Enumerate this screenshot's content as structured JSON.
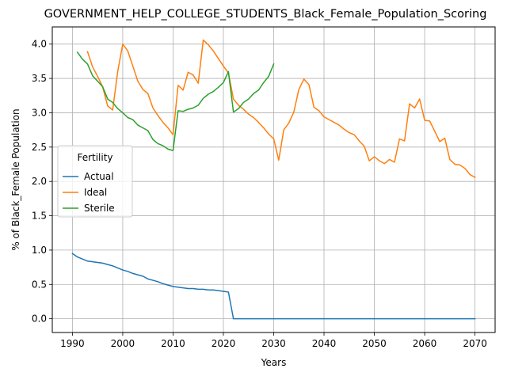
{
  "chart_data": {
    "type": "line",
    "title": "GOVERNMENT_HELP_COLLEGE_STUDENTS_Black_Female_Population_Scoring",
    "xlabel": "Years",
    "ylabel": "% of Black_Female Population",
    "xlim": [
      1986,
      2074
    ],
    "ylim": [
      -0.2,
      4.25
    ],
    "xticks": [
      1990,
      2000,
      2010,
      2020,
      2030,
      2040,
      2050,
      2060,
      2070
    ],
    "yticks": [
      0.0,
      0.5,
      1.0,
      1.5,
      2.0,
      2.5,
      3.0,
      3.5,
      4.0
    ],
    "ytick_labels": [
      "0.0",
      "0.5",
      "1.0",
      "1.5",
      "2.0",
      "2.5",
      "3.0",
      "3.5",
      "4.0"
    ],
    "grid": true,
    "legend": {
      "title": "Fertility",
      "placement": "center-left"
    },
    "series": [
      {
        "name": "Actual",
        "color": "#1f77b4",
        "x": [
          1990,
          1991,
          1992,
          1993,
          1994,
          1995,
          1996,
          1997,
          1998,
          1999,
          2000,
          2001,
          2002,
          2003,
          2004,
          2005,
          2006,
          2007,
          2008,
          2009,
          2010,
          2011,
          2012,
          2013,
          2014,
          2015,
          2016,
          2017,
          2018,
          2019,
          2020,
          2021,
          2022,
          2023,
          2025,
          2030,
          2040,
          2050,
          2060,
          2070
        ],
        "y": [
          0.95,
          0.9,
          0.87,
          0.84,
          0.83,
          0.82,
          0.81,
          0.79,
          0.77,
          0.74,
          0.71,
          0.69,
          0.66,
          0.64,
          0.62,
          0.58,
          0.56,
          0.54,
          0.51,
          0.49,
          0.47,
          0.46,
          0.45,
          0.44,
          0.44,
          0.43,
          0.43,
          0.42,
          0.42,
          0.41,
          0.4,
          0.39,
          0.0,
          0.0,
          0.0,
          0.0,
          0.0,
          0.0,
          0.0,
          0.0
        ]
      },
      {
        "name": "Ideal",
        "color": "#ff7f0e",
        "x": [
          1993,
          1994,
          1995,
          1996,
          1997,
          1998,
          1999,
          2000,
          2001,
          2002,
          2003,
          2004,
          2005,
          2006,
          2007,
          2008,
          2009,
          2010,
          2011,
          2012,
          2013,
          2014,
          2015,
          2016,
          2017,
          2018,
          2019,
          2020,
          2021,
          2022,
          2023,
          2024,
          2025,
          2026,
          2027,
          2028,
          2029,
          2030,
          2031,
          2032,
          2033,
          2034,
          2035,
          2036,
          2037,
          2038,
          2039,
          2040,
          2041,
          2042,
          2043,
          2044,
          2045,
          2046,
          2047,
          2048,
          2049,
          2050,
          2051,
          2052,
          2053,
          2054,
          2055,
          2056,
          2057,
          2058,
          2059,
          2060,
          2061,
          2062,
          2063,
          2064,
          2065,
          2066,
          2067,
          2068,
          2069,
          2070
        ],
        "y": [
          3.89,
          3.67,
          3.53,
          3.38,
          3.1,
          3.04,
          3.6,
          4.0,
          3.9,
          3.68,
          3.46,
          3.34,
          3.28,
          3.07,
          2.96,
          2.86,
          2.78,
          2.68,
          3.4,
          3.33,
          3.59,
          3.55,
          3.43,
          4.06,
          3.99,
          3.9,
          3.79,
          3.68,
          3.58,
          3.2,
          3.11,
          3.05,
          2.98,
          2.93,
          2.86,
          2.78,
          2.69,
          2.62,
          2.31,
          2.75,
          2.85,
          3.01,
          3.34,
          3.49,
          3.41,
          3.08,
          3.03,
          2.94,
          2.9,
          2.86,
          2.82,
          2.76,
          2.71,
          2.68,
          2.59,
          2.51,
          2.3,
          2.36,
          2.3,
          2.26,
          2.32,
          2.28,
          2.62,
          2.59,
          3.13,
          3.07,
          3.2,
          2.89,
          2.88,
          2.73,
          2.58,
          2.63,
          2.32,
          2.25,
          2.24,
          2.19,
          2.1,
          2.06
        ]
      },
      {
        "name": "Sterile",
        "color": "#2ca02c",
        "x": [
          1991,
          1992,
          1993,
          1994,
          1995,
          1996,
          1997,
          1998,
          1999,
          2000,
          2001,
          2002,
          2003,
          2004,
          2005,
          2006,
          2007,
          2008,
          2009,
          2010,
          2011,
          2012,
          2013,
          2014,
          2015,
          2016,
          2017,
          2018,
          2019,
          2020,
          2021,
          2022,
          2023,
          2024,
          2025,
          2026,
          2027,
          2028,
          2029,
          2030
        ],
        "y": [
          3.88,
          3.78,
          3.71,
          3.54,
          3.46,
          3.38,
          3.2,
          3.15,
          3.06,
          3.0,
          2.93,
          2.9,
          2.82,
          2.78,
          2.74,
          2.61,
          2.55,
          2.52,
          2.47,
          2.45,
          3.03,
          3.02,
          3.05,
          3.07,
          3.11,
          3.21,
          3.27,
          3.31,
          3.37,
          3.44,
          3.6,
          3.01,
          3.06,
          3.15,
          3.2,
          3.28,
          3.33,
          3.44,
          3.53,
          3.71
        ]
      }
    ]
  }
}
